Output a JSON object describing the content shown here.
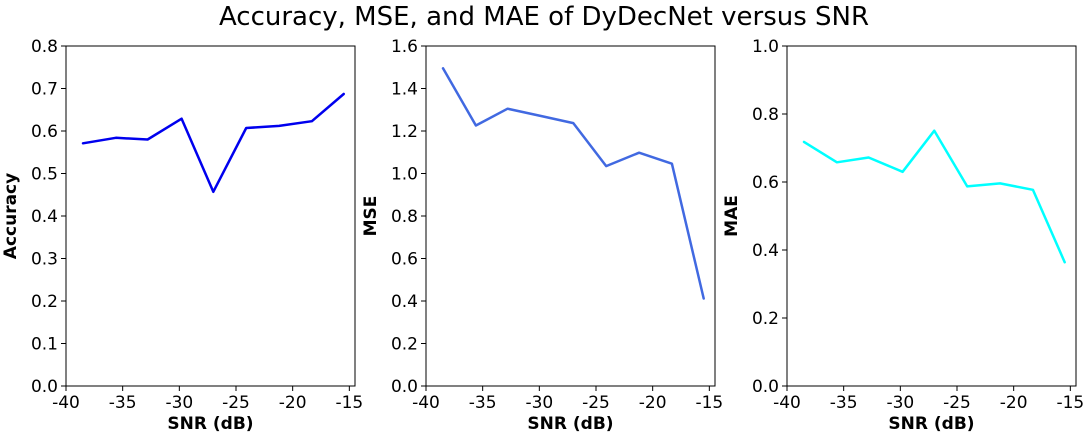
{
  "figure_title": "Accuracy, MSE, and MAE of DyDecNet versus SNR",
  "chart_data": [
    {
      "type": "line",
      "title": "",
      "xlabel": "SNR (dB)",
      "ylabel": "Accuracy",
      "xlim": [
        -40,
        -14.5
      ],
      "ylim": [
        0,
        0.8
      ],
      "xticks": [
        -40,
        -35,
        -30,
        -25,
        -20,
        -15
      ],
      "xtick_labels": [
        "-40",
        "-35",
        "-30",
        "-25",
        "-20",
        "-15"
      ],
      "yticks": [
        0,
        0.1,
        0.2,
        0.3,
        0.4,
        0.5,
        0.6,
        0.7,
        0.8
      ],
      "ytick_labels": [
        "0.0",
        "0.1",
        "0.2",
        "0.3",
        "0.4",
        "0.5",
        "0.6",
        "0.7",
        "0.8"
      ],
      "grid": false,
      "series": [
        {
          "color": "#0000ee",
          "x": [
            -38.5,
            -35.6,
            -32.8,
            -29.8,
            -27.0,
            -24.1,
            -21.2,
            -18.3,
            -15.5
          ],
          "y": [
            0.571,
            0.584,
            0.58,
            0.629,
            0.457,
            0.607,
            0.612,
            0.623,
            0.687
          ]
        }
      ]
    },
    {
      "type": "line",
      "title": "",
      "xlabel": "SNR (dB)",
      "ylabel": "MSE",
      "xlim": [
        -40,
        -14.5
      ],
      "ylim": [
        0,
        1.6
      ],
      "xticks": [
        -40,
        -35,
        -30,
        -25,
        -20,
        -15
      ],
      "xtick_labels": [
        "-40",
        "-35",
        "-30",
        "-25",
        "-20",
        "-15"
      ],
      "yticks": [
        0,
        0.2,
        0.4,
        0.6,
        0.8,
        1.0,
        1.2,
        1.4,
        1.6
      ],
      "ytick_labels": [
        "0.0",
        "0.2",
        "0.4",
        "0.6",
        "0.8",
        "1.0",
        "1.2",
        "1.4",
        "1.6"
      ],
      "grid": false,
      "series": [
        {
          "color": "#4169e1",
          "x": [
            -38.5,
            -35.6,
            -32.8,
            -29.8,
            -27.0,
            -24.1,
            -21.2,
            -18.3,
            -15.5
          ],
          "y": [
            1.495,
            1.226,
            1.305,
            1.27,
            1.237,
            1.035,
            1.098,
            1.046,
            0.412
          ]
        }
      ]
    },
    {
      "type": "line",
      "title": "",
      "xlabel": "SNR (dB)",
      "ylabel": "MAE",
      "xlim": [
        -40,
        -14.5
      ],
      "ylim": [
        0,
        1.0
      ],
      "xticks": [
        -40,
        -35,
        -30,
        -25,
        -20,
        -15
      ],
      "xtick_labels": [
        "-40",
        "-35",
        "-30",
        "-25",
        "-20",
        "-15"
      ],
      "yticks": [
        0,
        0.2,
        0.4,
        0.6,
        0.8,
        1.0
      ],
      "ytick_labels": [
        "0.0",
        "0.2",
        "0.4",
        "0.6",
        "0.8",
        "1.0"
      ],
      "grid": false,
      "series": [
        {
          "color": "#00ffff",
          "x": [
            -38.5,
            -35.6,
            -32.8,
            -29.8,
            -27.0,
            -24.1,
            -21.2,
            -18.3,
            -15.5
          ],
          "y": [
            0.718,
            0.658,
            0.672,
            0.63,
            0.751,
            0.587,
            0.596,
            0.577,
            0.364
          ]
        }
      ]
    }
  ]
}
